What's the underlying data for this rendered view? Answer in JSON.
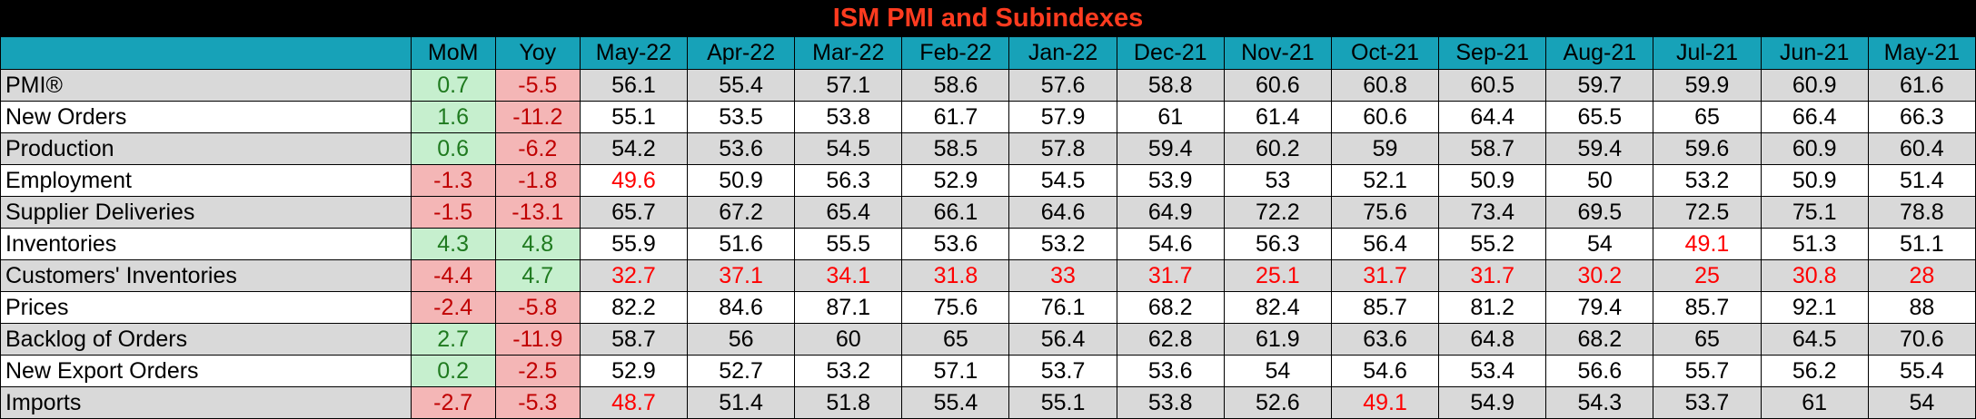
{
  "chart_data": {
    "type": "table",
    "title": "ISM PMI and Subindexes",
    "columns": [
      "",
      "MoM",
      "Yoy",
      "May-22",
      "Apr-22",
      "Mar-22",
      "Feb-22",
      "Jan-22",
      "Dec-21",
      "Nov-21",
      "Oct-21",
      "Sep-21",
      "Aug-21",
      "Jul-21",
      "Jun-21",
      "May-21"
    ],
    "rows": [
      {
        "label": "PMI®",
        "mom": "0.7",
        "yoy": "-5.5",
        "values": [
          "56.1",
          "55.4",
          "57.1",
          "58.6",
          "57.6",
          "58.8",
          "60.6",
          "60.8",
          "60.5",
          "59.7",
          "59.9",
          "60.9",
          "61.6"
        ]
      },
      {
        "label": "New Orders",
        "mom": "1.6",
        "yoy": "-11.2",
        "values": [
          "55.1",
          "53.5",
          "53.8",
          "61.7",
          "57.9",
          "61",
          "61.4",
          "60.6",
          "64.4",
          "65.5",
          "65",
          "66.4",
          "66.3"
        ]
      },
      {
        "label": "Production",
        "mom": "0.6",
        "yoy": "-6.2",
        "values": [
          "54.2",
          "53.6",
          "54.5",
          "58.5",
          "57.8",
          "59.4",
          "60.2",
          "59",
          "58.7",
          "59.4",
          "59.6",
          "60.9",
          "60.4"
        ]
      },
      {
        "label": "Employment",
        "mom": "-1.3",
        "yoy": "-1.8",
        "values": [
          "49.6",
          "50.9",
          "56.3",
          "52.9",
          "54.5",
          "53.9",
          "53",
          "52.1",
          "50.9",
          "50",
          "53.2",
          "50.9",
          "51.4"
        ]
      },
      {
        "label": "Supplier Deliveries",
        "mom": "-1.5",
        "yoy": "-13.1",
        "values": [
          "65.7",
          "67.2",
          "65.4",
          "66.1",
          "64.6",
          "64.9",
          "72.2",
          "75.6",
          "73.4",
          "69.5",
          "72.5",
          "75.1",
          "78.8"
        ]
      },
      {
        "label": "Inventories",
        "mom": "4.3",
        "yoy": "4.8",
        "values": [
          "55.9",
          "51.6",
          "55.5",
          "53.6",
          "53.2",
          "54.6",
          "56.3",
          "56.4",
          "55.2",
          "54",
          "49.1",
          "51.3",
          "51.1"
        ]
      },
      {
        "label": "Customers' Inventories",
        "mom": "-4.4",
        "yoy": "4.7",
        "values": [
          "32.7",
          "37.1",
          "34.1",
          "31.8",
          "33",
          "31.7",
          "25.1",
          "31.7",
          "31.7",
          "30.2",
          "25",
          "30.8",
          "28"
        ]
      },
      {
        "label": "Prices",
        "mom": "-2.4",
        "yoy": "-5.8",
        "values": [
          "82.2",
          "84.6",
          "87.1",
          "75.6",
          "76.1",
          "68.2",
          "82.4",
          "85.7",
          "81.2",
          "79.4",
          "85.7",
          "92.1",
          "88"
        ]
      },
      {
        "label": "Backlog of Orders",
        "mom": "2.7",
        "yoy": "-11.9",
        "values": [
          "58.7",
          "56",
          "60",
          "65",
          "56.4",
          "62.8",
          "61.9",
          "63.6",
          "64.8",
          "68.2",
          "65",
          "64.5",
          "70.6"
        ]
      },
      {
        "label": "New Export Orders",
        "mom": "0.2",
        "yoy": "-2.5",
        "values": [
          "52.9",
          "52.7",
          "53.2",
          "57.1",
          "53.7",
          "53.6",
          "54",
          "54.6",
          "53.4",
          "56.6",
          "55.7",
          "56.2",
          "55.4"
        ]
      },
      {
        "label": "Imports",
        "mom": "-2.7",
        "yoy": "-5.3",
        "values": [
          "48.7",
          "51.4",
          "51.8",
          "55.4",
          "55.1",
          "53.8",
          "52.6",
          "49.1",
          "54.9",
          "54.3",
          "53.7",
          "61",
          "54"
        ]
      }
    ]
  },
  "colors": {
    "title_bg": "#000000",
    "title_text": "#ff3b1f",
    "header_bg": "#17a2b8",
    "row_shade": "#d9d9d9",
    "positive_bg": "#c6efce",
    "positive_text": "#1f7a1f",
    "negative_bg": "#f4b6b6",
    "negative_text": "#c00000",
    "below_50_text": "#ff0000"
  }
}
